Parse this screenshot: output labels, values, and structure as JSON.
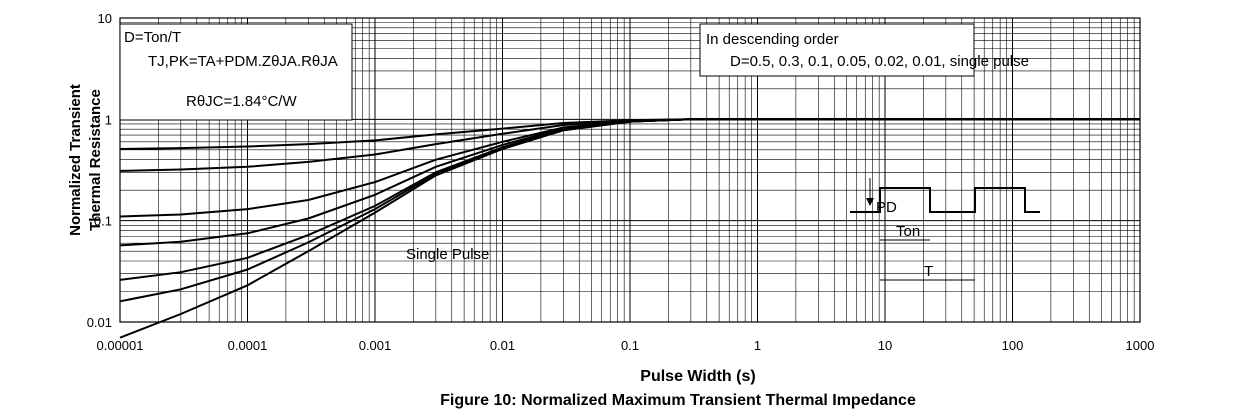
{
  "chart_data": {
    "type": "line",
    "title": "",
    "caption": "Figure 10: Normalized Maximum Transient Thermal Impedance",
    "xlabel": "Pulse Width (s)",
    "ylabel_lines": [
      "Normalized Transient",
      "Thermal Resistance"
    ],
    "x_scale": "log",
    "y_scale": "log",
    "xlim": [
      1e-05,
      1000
    ],
    "ylim": [
      0.01,
      10
    ],
    "x_ticks": [
      "0.00001",
      "0.0001",
      "0.001",
      "0.01",
      "0.1",
      "1",
      "10",
      "100",
      "1000"
    ],
    "y_ticks": [
      "10",
      "1",
      "0.1",
      "0.01"
    ],
    "grid": true,
    "annotations": {
      "duty": "D=Ton/T",
      "formula": "TJ,PK=TA+PDM.ZθJA.RθJA",
      "rth": "RθJC=1.84°C/W",
      "order_title": "In descending order",
      "order_values": "D=0.5, 0.3, 0.1, 0.05, 0.02, 0.01, single pulse",
      "single_pulse": "Single Pulse",
      "pulse_label": "PD",
      "ton": "Ton",
      "period": "T"
    },
    "series": [
      {
        "D": 0.5,
        "x": [
          1e-05,
          3e-05,
          0.0001,
          0.0003,
          0.001,
          0.003,
          0.01,
          0.03,
          0.1,
          0.3,
          1,
          10,
          1000
        ],
        "y": [
          0.51,
          0.52,
          0.54,
          0.57,
          0.62,
          0.71,
          0.81,
          0.92,
          0.98,
          1,
          1,
          1,
          1
        ]
      },
      {
        "D": 0.3,
        "x": [
          1e-05,
          3e-05,
          0.0001,
          0.0003,
          0.001,
          0.003,
          0.01,
          0.03,
          0.1,
          0.3,
          1,
          10,
          1000
        ],
        "y": [
          0.31,
          0.32,
          0.34,
          0.38,
          0.45,
          0.57,
          0.72,
          0.88,
          0.97,
          1,
          1,
          1,
          1
        ]
      },
      {
        "D": 0.1,
        "x": [
          1e-05,
          3e-05,
          0.0001,
          0.0003,
          0.001,
          0.003,
          0.01,
          0.03,
          0.1,
          0.3,
          1,
          10,
          1000
        ],
        "y": [
          0.11,
          0.115,
          0.13,
          0.16,
          0.24,
          0.4,
          0.6,
          0.83,
          0.96,
          1,
          1,
          1,
          1
        ]
      },
      {
        "D": 0.05,
        "x": [
          1e-05,
          3e-05,
          0.0001,
          0.0003,
          0.001,
          0.003,
          0.01,
          0.03,
          0.1,
          0.3,
          1,
          10,
          1000
        ],
        "y": [
          0.057,
          0.062,
          0.075,
          0.105,
          0.18,
          0.34,
          0.56,
          0.81,
          0.95,
          1,
          1,
          1,
          1
        ]
      },
      {
        "D": 0.02,
        "x": [
          1e-05,
          3e-05,
          0.0001,
          0.0003,
          0.001,
          0.003,
          0.01,
          0.03,
          0.1,
          0.3,
          1,
          10,
          1000
        ],
        "y": [
          0.026,
          0.031,
          0.043,
          0.072,
          0.14,
          0.3,
          0.53,
          0.79,
          0.95,
          1,
          1,
          1,
          1
        ]
      },
      {
        "D": 0.01,
        "x": [
          1e-05,
          3e-05,
          0.0001,
          0.0003,
          0.001,
          0.003,
          0.01,
          0.03,
          0.1,
          0.3,
          1,
          10,
          1000
        ],
        "y": [
          0.016,
          0.021,
          0.033,
          0.061,
          0.13,
          0.29,
          0.52,
          0.78,
          0.95,
          1,
          1,
          1,
          1
        ]
      },
      {
        "D": "single pulse",
        "x": [
          1e-05,
          3e-05,
          0.0001,
          0.0003,
          0.001,
          0.003,
          0.01,
          0.03,
          0.1,
          0.3,
          1,
          10,
          1000
        ],
        "y": [
          0.007,
          0.012,
          0.023,
          0.05,
          0.12,
          0.28,
          0.51,
          0.78,
          0.95,
          1,
          1,
          1,
          1
        ]
      }
    ]
  }
}
